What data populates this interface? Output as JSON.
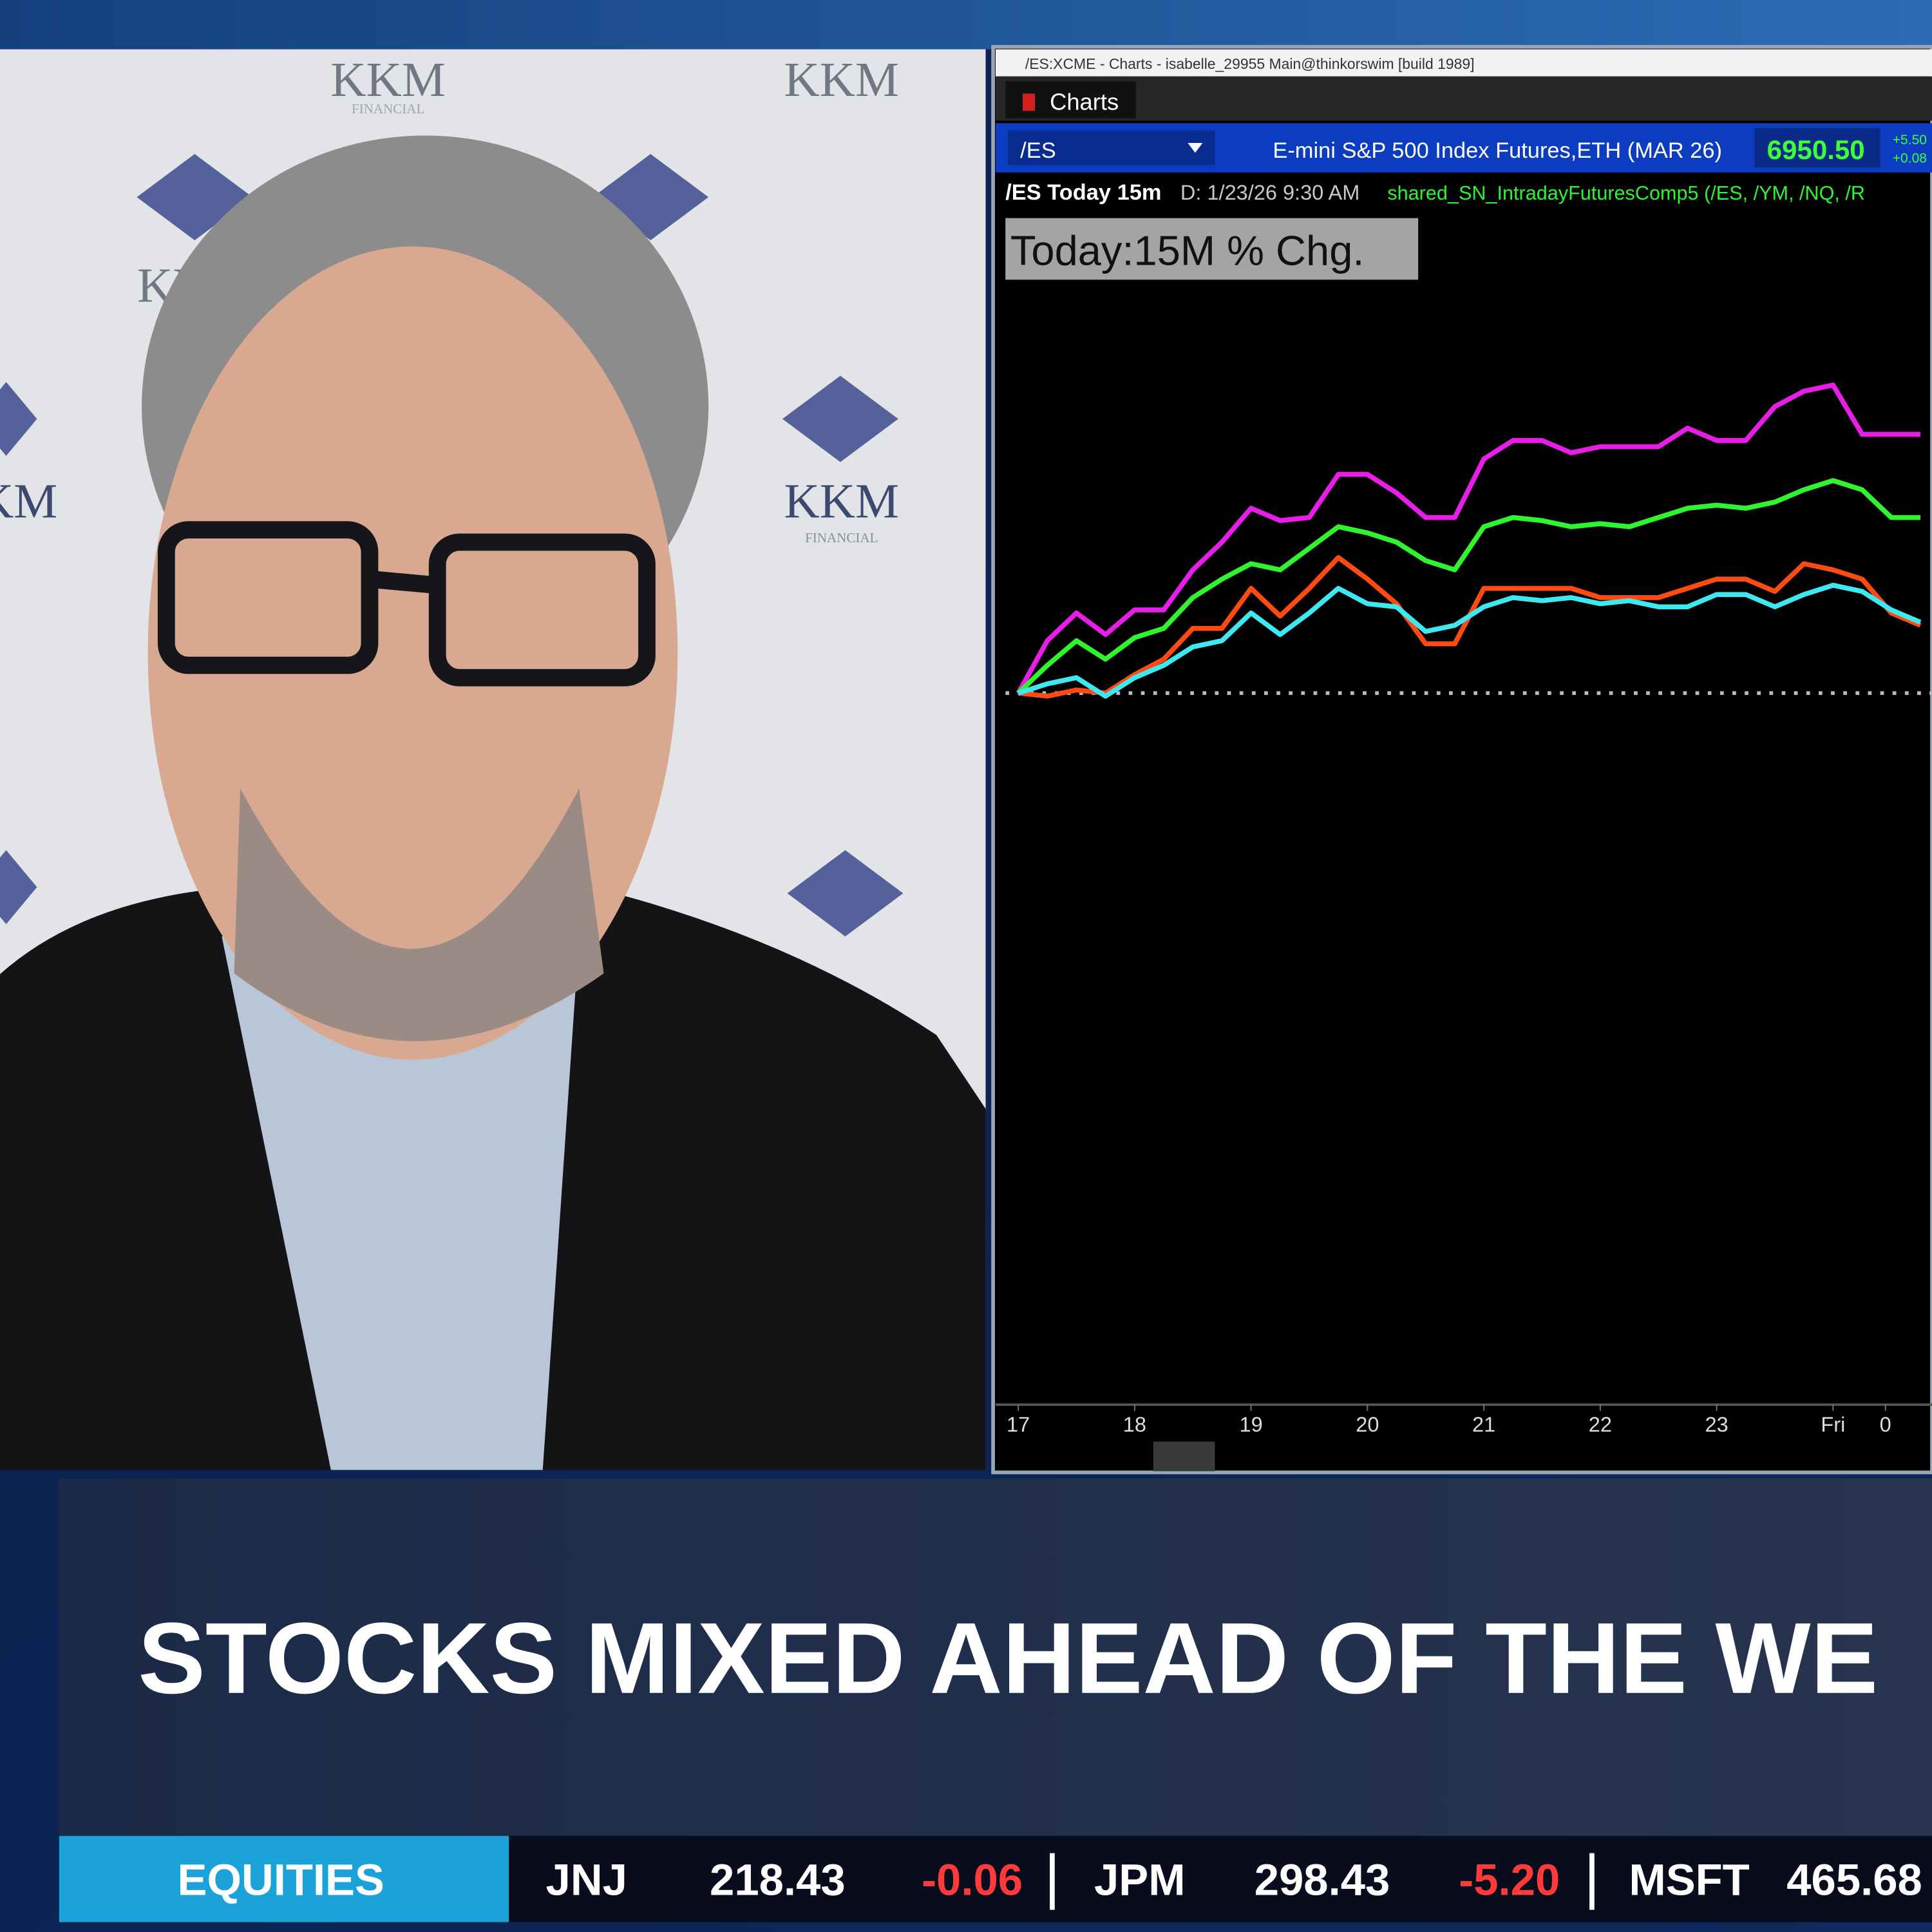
{
  "window": {
    "title": "/ES:XCME - Charts - isabelle_29955 Main@thinkorswim [build 1989]",
    "tab": "Charts"
  },
  "quote": {
    "symbol": "/ES",
    "description": "E-mini S&P 500 Index Futures,ETH (MAR 26)",
    "price": "6950.50",
    "change": "+5.50",
    "change_percent": "+0.08"
  },
  "chart_header": {
    "study": "/ES Today 15m",
    "date": "D: 1/23/26 9:30 AM",
    "comparison": "shared_SN_IntradayFuturesComp5 (/ES, /YM, /NQ, /R"
  },
  "chart_data": {
    "type": "line",
    "title": "Today:15M % Chg.",
    "x": [
      17,
      17.25,
      17.5,
      17.75,
      18,
      18.25,
      18.5,
      18.75,
      19,
      19.25,
      19.5,
      19.75,
      20,
      20.25,
      20.5,
      20.75,
      21,
      21.25,
      21.5,
      21.75,
      22,
      22.25,
      22.5,
      22.75,
      23,
      23.25,
      23.5,
      23.75,
      24,
      24.25,
      24.5,
      24.75
    ],
    "xlim": [
      16.89,
      24.85
    ],
    "xticks": [
      17,
      18,
      19,
      20,
      21,
      22,
      23,
      {
        "value": 24,
        "label": "Fri"
      },
      {
        "value": 24.45,
        "label": "0"
      }
    ],
    "ylim": [
      -2.29,
      1.55
    ],
    "baseline": 0,
    "series": [
      {
        "color": "#e81ee8",
        "values": [
          0,
          0.17,
          0.26,
          0.19,
          0.27,
          0.27,
          0.4,
          0.49,
          0.6,
          0.56,
          0.57,
          0.71,
          0.71,
          0.65,
          0.57,
          0.57,
          0.76,
          0.82,
          0.82,
          0.78,
          0.8,
          0.8,
          0.8,
          0.86,
          0.82,
          0.82,
          0.93,
          0.98,
          1.0,
          0.84,
          0.84,
          0.84
        ]
      },
      {
        "color": "#2ef52e",
        "values": [
          0,
          0.09,
          0.17,
          0.11,
          0.18,
          0.21,
          0.31,
          0.37,
          0.42,
          0.4,
          0.47,
          0.54,
          0.52,
          0.49,
          0.43,
          0.4,
          0.54,
          0.57,
          0.56,
          0.54,
          0.55,
          0.54,
          0.57,
          0.6,
          0.61,
          0.6,
          0.62,
          0.66,
          0.69,
          0.66,
          0.57,
          0.57
        ]
      },
      {
        "color": "#ff4a12",
        "values": [
          0,
          -0.01,
          0.01,
          0,
          0.06,
          0.11,
          0.21,
          0.21,
          0.34,
          0.25,
          0.34,
          0.44,
          0.37,
          0.29,
          0.16,
          0.16,
          0.34,
          0.34,
          0.34,
          0.34,
          0.31,
          0.31,
          0.31,
          0.34,
          0.37,
          0.37,
          0.33,
          0.42,
          0.4,
          0.37,
          0.26,
          0.22
        ]
      },
      {
        "color": "#3ee8f0",
        "values": [
          0,
          0.03,
          0.05,
          -0.01,
          0.05,
          0.09,
          0.15,
          0.17,
          0.26,
          0.19,
          0.26,
          0.34,
          0.29,
          0.28,
          0.2,
          0.22,
          0.28,
          0.31,
          0.3,
          0.31,
          0.29,
          0.3,
          0.28,
          0.28,
          0.32,
          0.32,
          0.28,
          0.32,
          0.35,
          0.33,
          0.27,
          0.23
        ]
      }
    ]
  },
  "backdrop": {
    "logo": "KKM",
    "tagline": "FINANCIAL"
  },
  "headline": "STOCKS MIXED AHEAD OF THE WE",
  "ticker": {
    "label": "EQUITIES",
    "items": [
      {
        "symbol": "JNJ",
        "price": "218.43",
        "change": "-0.06"
      },
      {
        "symbol": "JPM",
        "price": "298.43",
        "change": "-5.20"
      },
      {
        "symbol": "MSFT",
        "price": "465.68"
      }
    ]
  }
}
